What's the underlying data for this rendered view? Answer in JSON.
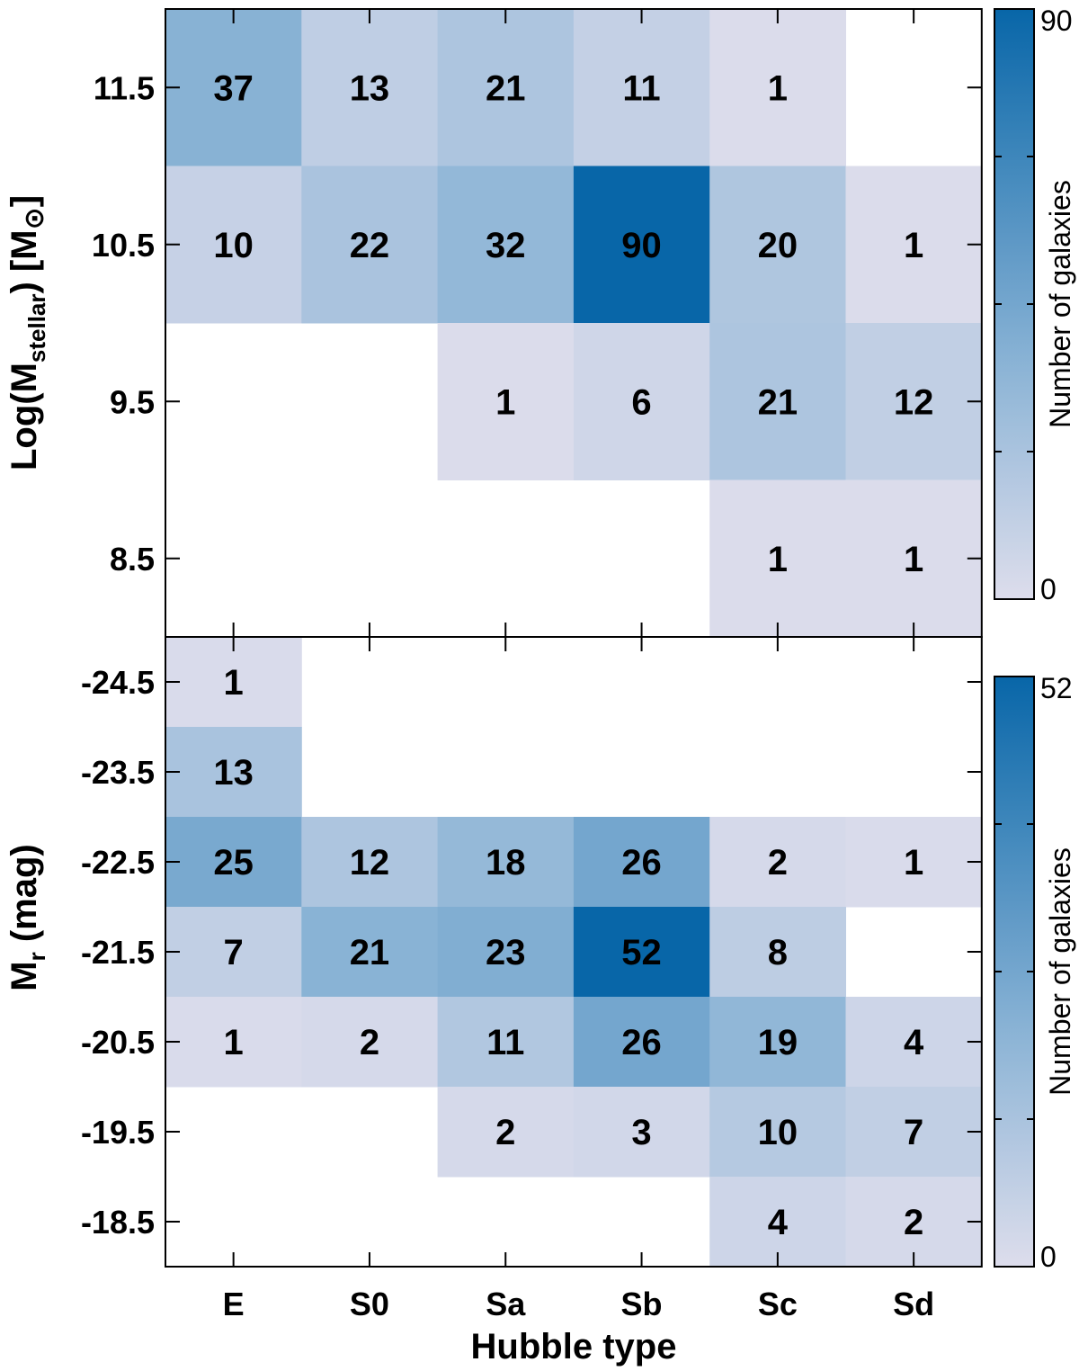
{
  "chart_data": [
    {
      "type": "heatmap",
      "categories": [
        "E",
        "S0",
        "Sa",
        "Sb",
        "Sc",
        "Sd"
      ],
      "y": [
        "11.5",
        "10.5",
        "9.5",
        "8.5"
      ],
      "ylabel": "Log(M",
      "ylabel_sub": "stellar",
      "ylabel_end": ") [M",
      "ylabel_sun": "⊙",
      "ylabel_close": "]",
      "values": [
        [
          37,
          13,
          21,
          11,
          1,
          null
        ],
        [
          10,
          22,
          32,
          90,
          20,
          1
        ],
        [
          null,
          null,
          1,
          6,
          21,
          12
        ],
        [
          null,
          null,
          null,
          null,
          1,
          1
        ]
      ],
      "colorbar": {
        "min": 0,
        "max": 90,
        "min_label": "0",
        "max_label": "90",
        "label": "Number of galaxies"
      },
      "colors": {
        "low": "#ddddec",
        "mid": "#8ab3d5",
        "high": "#0866a8"
      }
    },
    {
      "type": "heatmap",
      "categories": [
        "E",
        "S0",
        "Sa",
        "Sb",
        "Sc",
        "Sd"
      ],
      "y": [
        "-24.5",
        "-23.5",
        "-22.5",
        "-21.5",
        "-20.5",
        "-19.5",
        "-18.5"
      ],
      "ylabel": "M",
      "ylabel_sub": "r",
      "ylabel_end": " (mag)",
      "values": [
        [
          1,
          null,
          null,
          null,
          null,
          null
        ],
        [
          13,
          null,
          null,
          null,
          null,
          null
        ],
        [
          25,
          12,
          18,
          26,
          2,
          1
        ],
        [
          7,
          21,
          23,
          52,
          8,
          null
        ],
        [
          1,
          2,
          11,
          26,
          19,
          4
        ],
        [
          null,
          null,
          2,
          3,
          10,
          7
        ],
        [
          null,
          null,
          null,
          null,
          4,
          2
        ]
      ],
      "colorbar": {
        "min": 0,
        "max": 52,
        "min_label": "0",
        "max_label": "52",
        "label": "Number of galaxies"
      },
      "colors": {
        "low": "#ddddec",
        "mid": "#8ab3d5",
        "high": "#0866a8"
      }
    }
  ],
  "xlabel": "Hubble type"
}
